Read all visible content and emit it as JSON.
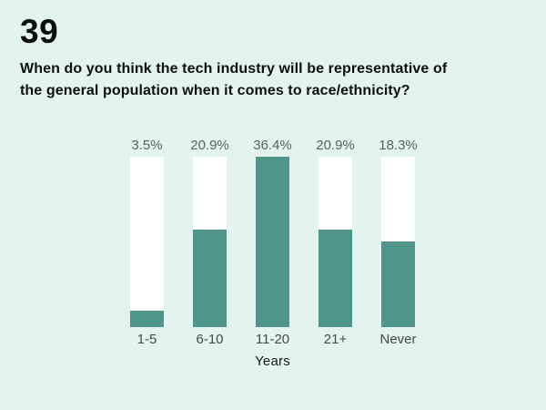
{
  "page": {
    "number": "39",
    "background_color": "#e3f4ef"
  },
  "question": {
    "title_lines": [
      "When do you think the tech industry will be representative of",
      "the general population when it comes to race/ethnicity?"
    ]
  },
  "chart_data": {
    "type": "bar",
    "title": "When do you think the tech industry will be representative of the general population when it comes to race/ethnicity?",
    "categories": [
      "1-5",
      "6-10",
      "11-20",
      "21+",
      "Never"
    ],
    "values": [
      3.5,
      20.9,
      36.4,
      20.9,
      18.3
    ],
    "value_labels": [
      "3.5%",
      "20.9%",
      "36.4%",
      "20.9%",
      "18.3%"
    ],
    "xlabel": "Years",
    "ylabel": "",
    "ylim": [
      0,
      36.4
    ],
    "grid": false,
    "legend_position": "none",
    "bar_color": "#4f9589",
    "track_color": "#ffffff",
    "layout_hint": "each bar is a full-height white track; teal fill height is value relative to max value (36.4% fills the track)"
  }
}
